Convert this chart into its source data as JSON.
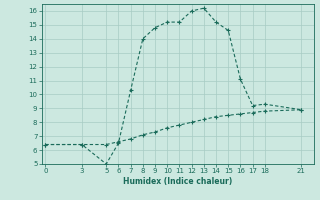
{
  "xlabel": "Humidex (Indice chaleur)",
  "bg_color": "#cce8e0",
  "grid_color": "#a8ccc4",
  "line_color": "#1a6b5a",
  "ylim": [
    5,
    16.5
  ],
  "xlim": [
    -0.3,
    22
  ],
  "yticks": [
    5,
    6,
    7,
    8,
    9,
    10,
    11,
    12,
    13,
    14,
    15,
    16
  ],
  "xticks": [
    0,
    3,
    5,
    6,
    7,
    8,
    9,
    10,
    11,
    12,
    13,
    14,
    15,
    16,
    17,
    18,
    21
  ],
  "upper_line": {
    "x": [
      0,
      3,
      5,
      6,
      7,
      8,
      9,
      10,
      11,
      12,
      13,
      14,
      15,
      16,
      17,
      18,
      21
    ],
    "y": [
      6.4,
      6.4,
      5.0,
      6.5,
      10.3,
      14.0,
      14.8,
      15.2,
      15.2,
      16.0,
      16.2,
      15.2,
      14.6,
      11.1,
      9.2,
      9.3,
      8.9
    ]
  },
  "lower_line": {
    "x": [
      0,
      3,
      5,
      6,
      7,
      8,
      9,
      10,
      11,
      12,
      13,
      14,
      15,
      16,
      17,
      18,
      21
    ],
    "y": [
      6.4,
      6.4,
      6.4,
      6.6,
      6.8,
      7.1,
      7.3,
      7.6,
      7.8,
      8.0,
      8.2,
      8.4,
      8.5,
      8.6,
      8.7,
      8.8,
      8.9
    ]
  }
}
